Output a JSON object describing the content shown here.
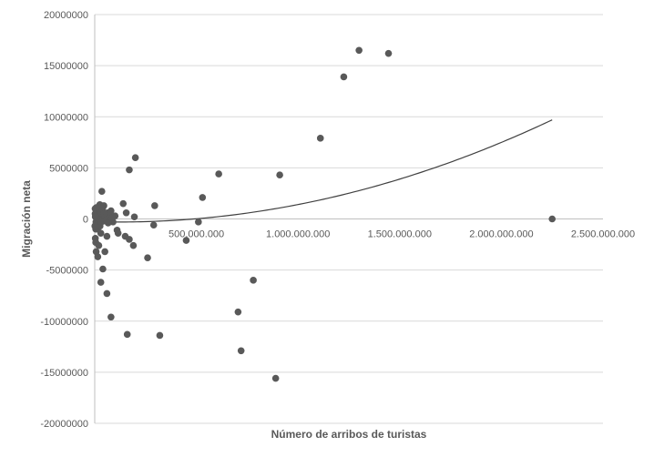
{
  "chart_data": {
    "type": "scatter",
    "title": "",
    "xlabel": "Número de arribos de turistas",
    "ylabel": "Migración neta",
    "xlim": [
      0,
      2500000000
    ],
    "ylim": [
      -20000000,
      20000000
    ],
    "x_ticks": [
      {
        "value": 500000000,
        "label": "500.000.000"
      },
      {
        "value": 1000000000,
        "label": "1.000.000.000"
      },
      {
        "value": 1500000000,
        "label": "1.500.000.000"
      },
      {
        "value": 2000000000,
        "label": "2.000.000.000"
      },
      {
        "value": 2500000000,
        "label": "2.500.000.000"
      }
    ],
    "y_ticks": [
      {
        "value": 20000000,
        "label": "20000000"
      },
      {
        "value": 15000000,
        "label": "15000000"
      },
      {
        "value": 10000000,
        "label": "10000000"
      },
      {
        "value": 5000000,
        "label": "5000000"
      },
      {
        "value": 0,
        "label": "0"
      },
      {
        "value": -5000000,
        "label": "-5000000"
      },
      {
        "value": -10000000,
        "label": "-10000000"
      },
      {
        "value": -15000000,
        "label": "-15000000"
      },
      {
        "value": -20000000,
        "label": "-20000000"
      }
    ],
    "grid": {
      "horizontal": true,
      "vertical": false
    },
    "colors": {
      "points": "#595959",
      "trendline": "#404040",
      "grid": "#d9d9d9",
      "axis": "#bfbfbf"
    },
    "series": [
      {
        "points": [
          {
            "x": 2000000,
            "y": 1000000
          },
          {
            "x": 4000000,
            "y": 500000
          },
          {
            "x": 6000000,
            "y": -300000
          },
          {
            "x": 8000000,
            "y": 200000
          },
          {
            "x": 10000000,
            "y": -500000
          },
          {
            "x": 12000000,
            "y": 800000
          },
          {
            "x": 14000000,
            "y": -1000000
          },
          {
            "x": 16000000,
            "y": 300000
          },
          {
            "x": 18000000,
            "y": 1200000
          },
          {
            "x": 20000000,
            "y": -200000
          },
          {
            "x": 22000000,
            "y": 600000
          },
          {
            "x": 24000000,
            "y": 900000
          },
          {
            "x": 26000000,
            "y": -700000
          },
          {
            "x": 28000000,
            "y": 400000
          },
          {
            "x": 30000000,
            "y": 100000
          },
          {
            "x": 3000000,
            "y": -1900000
          },
          {
            "x": 5000000,
            "y": -2300000
          },
          {
            "x": 7000000,
            "y": -3200000
          },
          {
            "x": 15000000,
            "y": -3700000
          },
          {
            "x": 20000000,
            "y": -2600000
          },
          {
            "x": 30000000,
            "y": -1400000
          },
          {
            "x": 40000000,
            "y": 400000
          },
          {
            "x": 50000000,
            "y": -200000
          },
          {
            "x": 25000000,
            "y": 1400000
          },
          {
            "x": 35000000,
            "y": 2700000
          },
          {
            "x": 45000000,
            "y": 1300000
          },
          {
            "x": 55000000,
            "y": 200000
          },
          {
            "x": 60000000,
            "y": -1700000
          },
          {
            "x": 62000000,
            "y": 600000
          },
          {
            "x": 70000000,
            "y": 400000
          },
          {
            "x": 80000000,
            "y": 800000
          },
          {
            "x": 90000000,
            "y": -300000
          },
          {
            "x": 100000000,
            "y": 300000
          },
          {
            "x": 110000000,
            "y": -1100000
          },
          {
            "x": 115000000,
            "y": -1400000
          },
          {
            "x": 140000000,
            "y": 1500000
          },
          {
            "x": 150000000,
            "y": -1700000
          },
          {
            "x": 155000000,
            "y": 600000
          },
          {
            "x": 170000000,
            "y": -2000000
          },
          {
            "x": 190000000,
            "y": -2600000
          },
          {
            "x": 195000000,
            "y": 200000
          },
          {
            "x": 170000000,
            "y": 4800000
          },
          {
            "x": 200000000,
            "y": 6000000
          },
          {
            "x": 30000000,
            "y": -6200000
          },
          {
            "x": 40000000,
            "y": -4900000
          },
          {
            "x": 50000000,
            "y": -3200000
          },
          {
            "x": 60000000,
            "y": -7300000
          },
          {
            "x": 80000000,
            "y": -9600000
          },
          {
            "x": 160000000,
            "y": -11300000
          },
          {
            "x": 260000000,
            "y": -3800000
          },
          {
            "x": 290000000,
            "y": -600000
          },
          {
            "x": 295000000,
            "y": 1300000
          },
          {
            "x": 320000000,
            "y": -11400000
          },
          {
            "x": 450000000,
            "y": -2100000
          },
          {
            "x": 510000000,
            "y": -300000
          },
          {
            "x": 530000000,
            "y": 2100000
          },
          {
            "x": 610000000,
            "y": 4400000
          },
          {
            "x": 705000000,
            "y": -9100000
          },
          {
            "x": 720000000,
            "y": -12900000
          },
          {
            "x": 780000000,
            "y": -6000000
          },
          {
            "x": 890000000,
            "y": -15600000
          },
          {
            "x": 910000000,
            "y": 4300000
          },
          {
            "x": 1110000000,
            "y": 7900000
          },
          {
            "x": 1225000000,
            "y": 13900000
          },
          {
            "x": 1300000000,
            "y": 16500000
          },
          {
            "x": 1445000000,
            "y": 16200000
          },
          {
            "x": 2250000000,
            "y": 0
          },
          {
            "x": 2000000,
            "y": 500000
          },
          {
            "x": 5000000,
            "y": -1000000
          },
          {
            "x": 9000000,
            "y": 700000
          },
          {
            "x": 12000000,
            "y": 100000
          },
          {
            "x": 16000000,
            "y": -600000
          },
          {
            "x": 21000000,
            "y": -100000
          },
          {
            "x": 27000000,
            "y": 700000
          },
          {
            "x": 33000000,
            "y": -300000
          },
          {
            "x": 38000000,
            "y": 1000000
          },
          {
            "x": 44000000,
            "y": 500000
          },
          {
            "x": 52000000,
            "y": 200000
          },
          {
            "x": 58000000,
            "y": -100000
          },
          {
            "x": 66000000,
            "y": -400000
          },
          {
            "x": 75000000,
            "y": 300000
          },
          {
            "x": 86000000,
            "y": 100000
          },
          {
            "x": 1000000,
            "y": -700000
          },
          {
            "x": 3000000,
            "y": 200000
          },
          {
            "x": 7000000,
            "y": 1100000
          }
        ]
      }
    ],
    "trendline": {
      "type": "polynomial",
      "x_range": [
        0,
        2250000000
      ],
      "coefficients": [
        -272000,
        -0.00052,
        2.2e-12
      ]
    }
  }
}
